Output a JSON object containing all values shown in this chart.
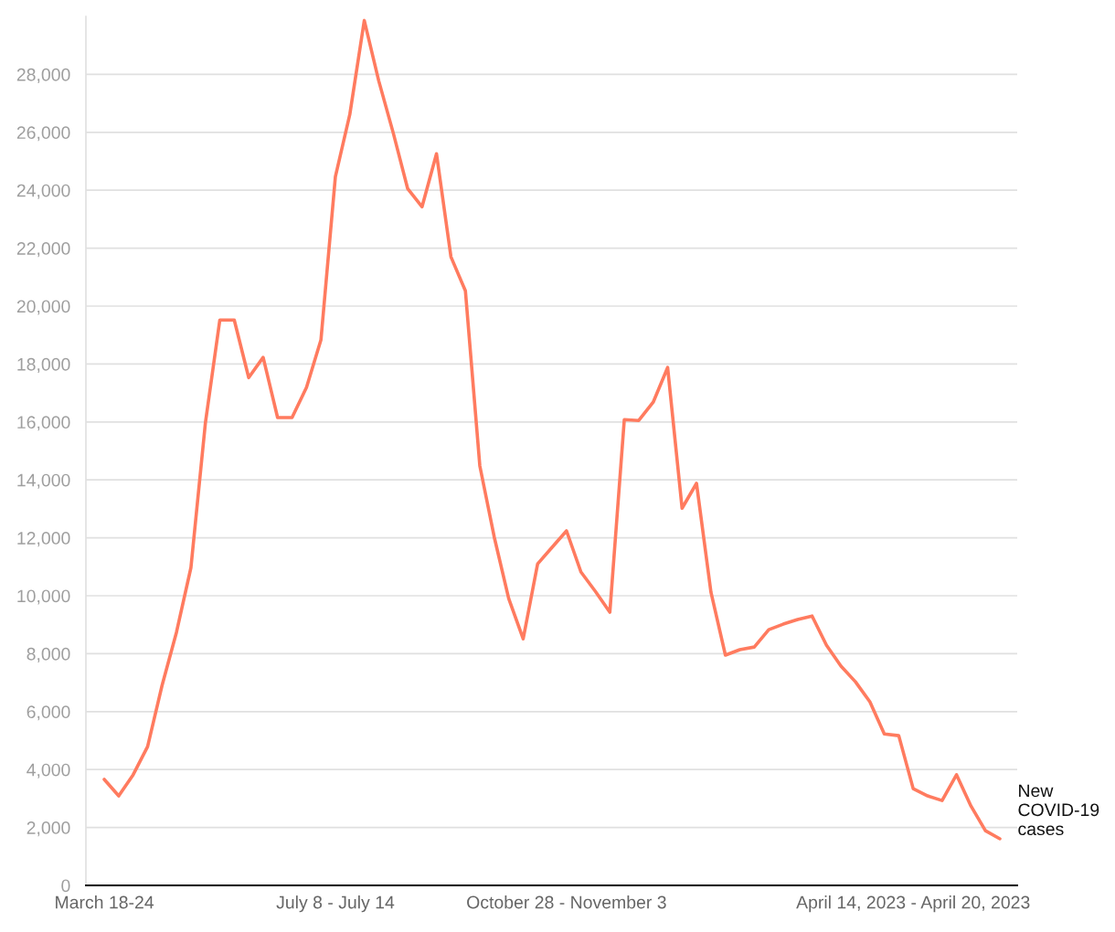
{
  "chart_data": {
    "type": "line",
    "categories": [
      "March 18-24",
      null,
      null,
      null,
      null,
      null,
      null,
      null,
      null,
      null,
      null,
      null,
      null,
      null,
      null,
      null,
      "July 8 - July 14",
      null,
      null,
      null,
      null,
      null,
      null,
      null,
      null,
      null,
      null,
      null,
      null,
      null,
      null,
      null,
      "October 28 - November 3",
      null,
      null,
      null,
      null,
      null,
      null,
      null,
      null,
      null,
      null,
      null,
      null,
      null,
      null,
      null,
      null,
      null,
      null,
      null,
      null,
      null,
      null,
      null,
      "April 14, 2023 - April 20, 2023",
      null,
      null,
      null,
      null,
      null,
      null
    ],
    "series": [
      {
        "name": "New COVID-19 cases",
        "color": "#ff7b5f",
        "values": [
          3660,
          3090,
          3820,
          4790,
          6900,
          8740,
          10970,
          15960,
          19520,
          19520,
          17530,
          18230,
          16150,
          16150,
          17190,
          18830,
          24470,
          26620,
          29860,
          27780,
          25990,
          24060,
          23430,
          25260,
          21700,
          20530,
          14480,
          12020,
          9900,
          8510,
          11100,
          11670,
          12240,
          10820,
          10150,
          9430,
          16080,
          16050,
          16680,
          17880,
          13020,
          13880,
          10120,
          7950,
          8140,
          8230,
          8830,
          9020,
          9180,
          9300,
          8290,
          7570,
          7030,
          6340,
          5230,
          5170,
          3340,
          3090,
          2930,
          3820,
          2740,
          1890,
          1610
        ]
      }
    ],
    "ylim": [
      0,
      30000
    ],
    "yticks": [
      0,
      {
        "value": 2000,
        "label": "2,000"
      },
      {
        "value": 4000,
        "label": "4,000"
      },
      {
        "value": 6000,
        "label": "6,000"
      },
      {
        "value": 8000,
        "label": "8,000"
      },
      {
        "value": 10000,
        "label": "10,000"
      },
      {
        "value": 12000,
        "label": "12,000"
      },
      {
        "value": 14000,
        "label": "14,000"
      },
      {
        "value": 16000,
        "label": "16,000"
      },
      {
        "value": 18000,
        "label": "18,000"
      },
      {
        "value": 20000,
        "label": "20,000"
      },
      {
        "value": 22000,
        "label": "22,000"
      },
      {
        "value": 24000,
        "label": "24,000"
      },
      {
        "value": 26000,
        "label": "26,000"
      },
      {
        "value": 28000,
        "label": "28,000"
      }
    ],
    "grid": "y",
    "legend": false
  }
}
